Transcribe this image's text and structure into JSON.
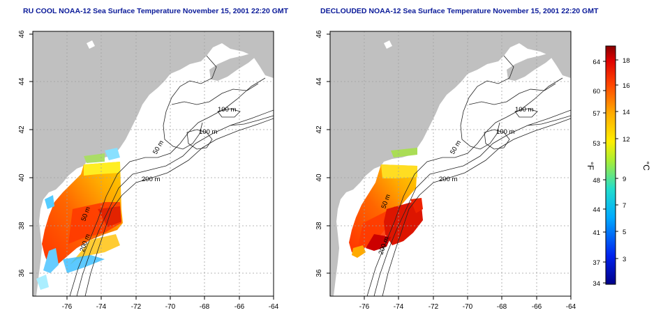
{
  "panels": [
    {
      "title": "RU COOL NOAA-12 Sea Surface Temperature November 15, 2001 22:20 GMT",
      "x_ticks": [
        "-76",
        "-74",
        "-72",
        "-70",
        "-68",
        "-66",
        "-64"
      ],
      "y_ticks": [
        "36",
        "38",
        "40",
        "42",
        "44",
        "46"
      ],
      "contour_labels": [
        "100 m",
        "100 m",
        "50 m",
        "200 m",
        "50 m",
        "200 m"
      ]
    },
    {
      "title": "DECLOUDED NOAA-12 Sea Surface Temperature November 15, 2001 22:20 GMT",
      "x_ticks": [
        "-76",
        "-74",
        "-72",
        "-70",
        "-68",
        "-66",
        "-64"
      ],
      "y_ticks": [
        "36",
        "38",
        "40",
        "42",
        "44",
        "46"
      ],
      "contour_labels": [
        "100 m",
        "100 m",
        "50 m",
        "200 m",
        "50 m",
        "200 m"
      ]
    }
  ],
  "colorbar": {
    "f_label": "°F",
    "c_label": "°C",
    "f_ticks": [
      "64",
      "60",
      "57",
      "53",
      "48",
      "44",
      "41",
      "37",
      "34"
    ],
    "c_ticks": [
      "18",
      "16",
      "14",
      "12",
      "9",
      "7",
      "5",
      "3"
    ]
  },
  "colors": {
    "land": "#c0c0c0",
    "ocean": "#ffffff",
    "title": "#0a1a99",
    "grid": "#a0a0a0"
  }
}
